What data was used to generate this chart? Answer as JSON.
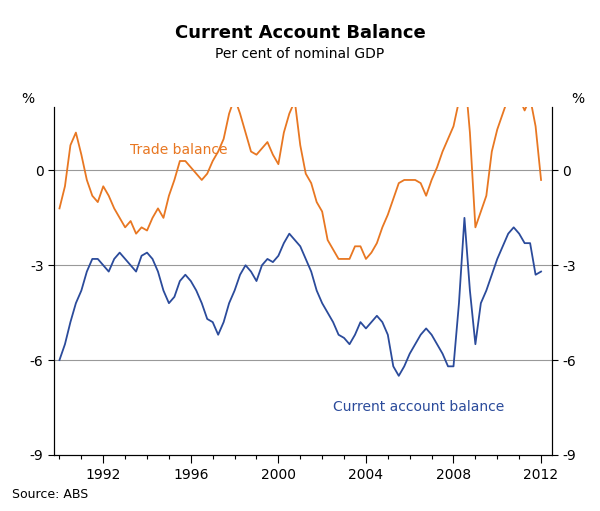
{
  "title": "Current Account Balance",
  "subtitle": "Per cent of nominal GDP",
  "ylabel_left": "%",
  "ylabel_right": "%",
  "source": "Source: ABS",
  "ylim": [
    -9,
    2.0
  ],
  "yticks": [
    0,
    -3,
    -6,
    -9
  ],
  "grid_values": [
    0,
    -3,
    -6
  ],
  "orange_color": "#E87722",
  "blue_color": "#2B4B9B",
  "trade_balance_label": "Trade balance",
  "cab_label": "Current account balance",
  "xlim": [
    1989.75,
    2012.5
  ],
  "xtick_major": [
    1992,
    1996,
    2000,
    2004,
    2008,
    2012
  ],
  "trade_balance": {
    "dates": [
      1990.0,
      1990.25,
      1990.5,
      1990.75,
      1991.0,
      1991.25,
      1991.5,
      1991.75,
      1992.0,
      1992.25,
      1992.5,
      1992.75,
      1993.0,
      1993.25,
      1993.5,
      1993.75,
      1994.0,
      1994.25,
      1994.5,
      1994.75,
      1995.0,
      1995.25,
      1995.5,
      1995.75,
      1996.0,
      1996.25,
      1996.5,
      1996.75,
      1997.0,
      1997.25,
      1997.5,
      1997.75,
      1998.0,
      1998.25,
      1998.5,
      1998.75,
      1999.0,
      1999.25,
      1999.5,
      1999.75,
      2000.0,
      2000.25,
      2000.5,
      2000.75,
      2001.0,
      2001.25,
      2001.5,
      2001.75,
      2002.0,
      2002.25,
      2002.5,
      2002.75,
      2003.0,
      2003.25,
      2003.5,
      2003.75,
      2004.0,
      2004.25,
      2004.5,
      2004.75,
      2005.0,
      2005.25,
      2005.5,
      2005.75,
      2006.0,
      2006.25,
      2006.5,
      2006.75,
      2007.0,
      2007.25,
      2007.5,
      2007.75,
      2008.0,
      2008.25,
      2008.5,
      2008.75,
      2009.0,
      2009.25,
      2009.5,
      2009.75,
      2010.0,
      2010.25,
      2010.5,
      2010.75,
      2011.0,
      2011.25,
      2011.5,
      2011.75,
      2012.0
    ],
    "values": [
      -1.2,
      -0.5,
      0.8,
      1.2,
      0.5,
      -0.3,
      -0.8,
      -1.0,
      -0.5,
      -0.8,
      -1.2,
      -1.5,
      -1.8,
      -1.6,
      -2.0,
      -1.8,
      -1.9,
      -1.5,
      -1.2,
      -1.5,
      -0.8,
      -0.3,
      0.3,
      0.3,
      0.1,
      -0.1,
      -0.3,
      -0.1,
      0.3,
      0.6,
      1.0,
      1.8,
      2.3,
      1.8,
      1.2,
      0.6,
      0.5,
      0.7,
      0.9,
      0.5,
      0.2,
      1.2,
      1.8,
      2.2,
      0.8,
      -0.1,
      -0.4,
      -1.0,
      -1.3,
      -2.2,
      -2.5,
      -2.8,
      -2.8,
      -2.8,
      -2.4,
      -2.4,
      -2.8,
      -2.6,
      -2.3,
      -1.8,
      -1.4,
      -0.9,
      -0.4,
      -0.3,
      -0.3,
      -0.3,
      -0.4,
      -0.8,
      -0.3,
      0.1,
      0.6,
      1.0,
      1.4,
      2.2,
      3.2,
      1.2,
      -1.8,
      -1.3,
      -0.8,
      0.6,
      1.3,
      1.8,
      2.3,
      2.7,
      2.3,
      1.9,
      2.3,
      1.4,
      -0.3
    ]
  },
  "current_account_balance": {
    "dates": [
      1990.0,
      1990.25,
      1990.5,
      1990.75,
      1991.0,
      1991.25,
      1991.5,
      1991.75,
      1992.0,
      1992.25,
      1992.5,
      1992.75,
      1993.0,
      1993.25,
      1993.5,
      1993.75,
      1994.0,
      1994.25,
      1994.5,
      1994.75,
      1995.0,
      1995.25,
      1995.5,
      1995.75,
      1996.0,
      1996.25,
      1996.5,
      1996.75,
      1997.0,
      1997.25,
      1997.5,
      1997.75,
      1998.0,
      1998.25,
      1998.5,
      1998.75,
      1999.0,
      1999.25,
      1999.5,
      1999.75,
      2000.0,
      2000.25,
      2000.5,
      2000.75,
      2001.0,
      2001.25,
      2001.5,
      2001.75,
      2002.0,
      2002.25,
      2002.5,
      2002.75,
      2003.0,
      2003.25,
      2003.5,
      2003.75,
      2004.0,
      2004.25,
      2004.5,
      2004.75,
      2005.0,
      2005.25,
      2005.5,
      2005.75,
      2006.0,
      2006.25,
      2006.5,
      2006.75,
      2007.0,
      2007.25,
      2007.5,
      2007.75,
      2008.0,
      2008.25,
      2008.5,
      2008.75,
      2009.0,
      2009.25,
      2009.5,
      2009.75,
      2010.0,
      2010.25,
      2010.5,
      2010.75,
      2011.0,
      2011.25,
      2011.5,
      2011.75,
      2012.0
    ],
    "values": [
      -6.0,
      -5.5,
      -4.8,
      -4.2,
      -3.8,
      -3.2,
      -2.8,
      -2.8,
      -3.0,
      -3.2,
      -2.8,
      -2.6,
      -2.8,
      -3.0,
      -3.2,
      -2.7,
      -2.6,
      -2.8,
      -3.2,
      -3.8,
      -4.2,
      -4.0,
      -3.5,
      -3.3,
      -3.5,
      -3.8,
      -4.2,
      -4.7,
      -4.8,
      -5.2,
      -4.8,
      -4.2,
      -3.8,
      -3.3,
      -3.0,
      -3.2,
      -3.5,
      -3.0,
      -2.8,
      -2.9,
      -2.7,
      -2.3,
      -2.0,
      -2.2,
      -2.4,
      -2.8,
      -3.2,
      -3.8,
      -4.2,
      -4.5,
      -4.8,
      -5.2,
      -5.3,
      -5.5,
      -5.2,
      -4.8,
      -5.0,
      -4.8,
      -4.6,
      -4.8,
      -5.2,
      -6.2,
      -6.5,
      -6.2,
      -5.8,
      -5.5,
      -5.2,
      -5.0,
      -5.2,
      -5.5,
      -5.8,
      -6.2,
      -6.2,
      -4.2,
      -1.5,
      -3.8,
      -5.5,
      -4.2,
      -3.8,
      -3.3,
      -2.8,
      -2.4,
      -2.0,
      -1.8,
      -2.0,
      -2.3,
      -2.3,
      -3.3,
      -3.2
    ]
  }
}
